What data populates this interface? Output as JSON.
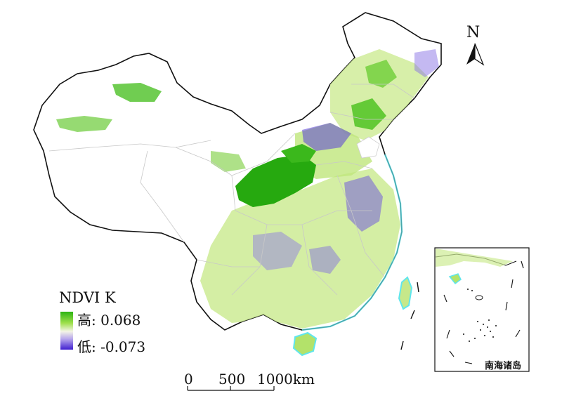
{
  "north_arrow": {
    "label": "N",
    "icon": "north-arrow-icon"
  },
  "legend": {
    "title": "NDVI K",
    "high_label": "高: 0.068",
    "low_label": "低: -0.073",
    "high_color": "#2db414",
    "mid_color": "#f4f4e6",
    "low_color": "#3f1fd0"
  },
  "scale_bar": {
    "ticks": [
      "0",
      "500",
      "1000km"
    ]
  },
  "inset": {
    "label": "南海诸岛"
  },
  "colors": {
    "boundary": "#111111",
    "province_lines": "#c8c8c8",
    "coast_cyan": "#5fe6ee"
  }
}
